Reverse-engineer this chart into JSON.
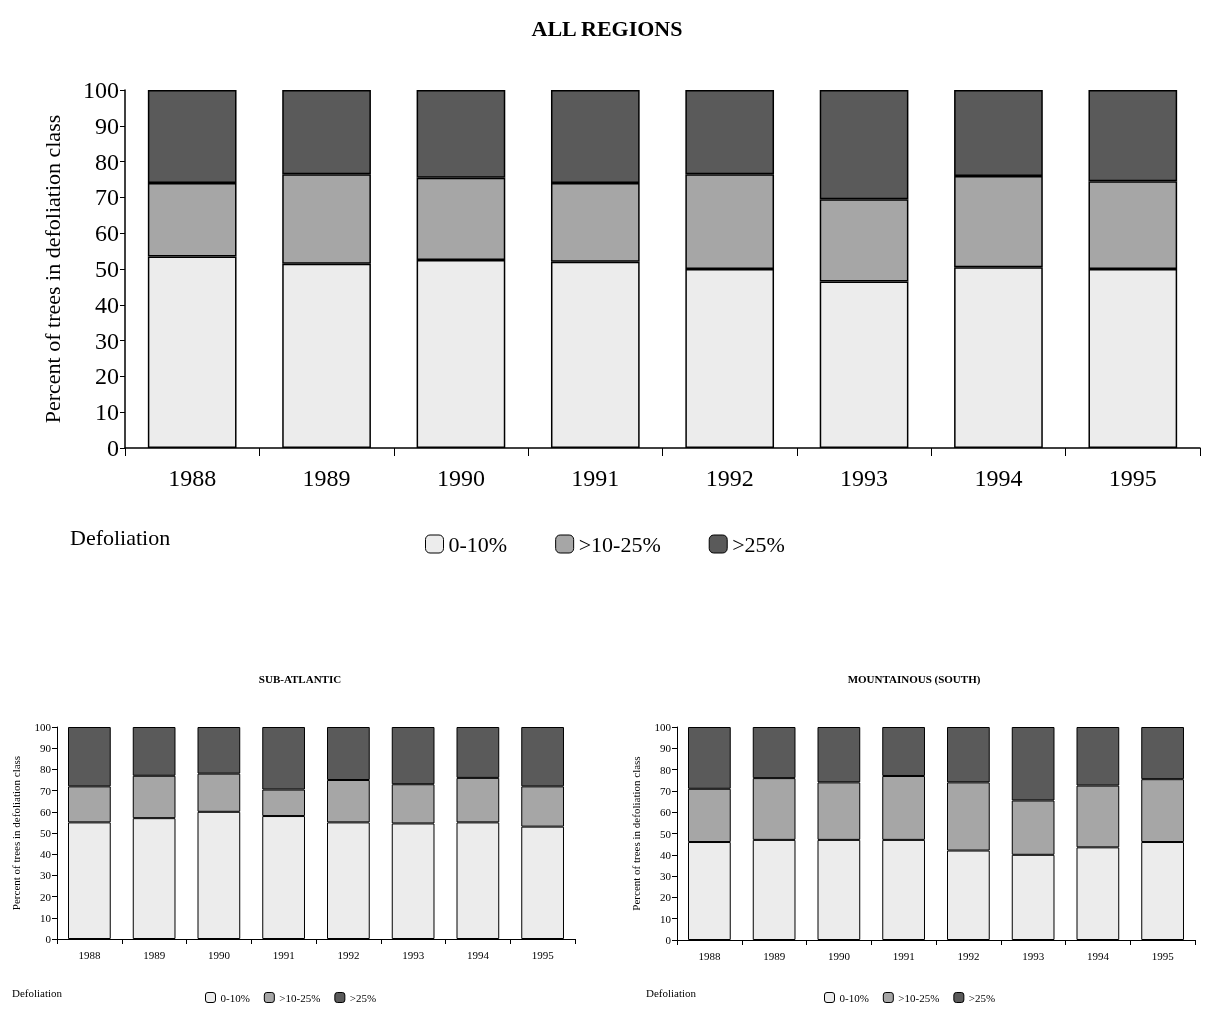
{
  "chart_data": [
    {
      "type": "bar",
      "title": "ALL REGIONS",
      "ylabel": "Percent of trees in defoliation class",
      "legend_title": "Defoliation",
      "categories": [
        "1988",
        "1989",
        "1990",
        "1991",
        "1992",
        "1993",
        "1994",
        "1995"
      ],
      "stacked": true,
      "ylim": [
        0,
        100
      ],
      "yticks": [
        0,
        10,
        20,
        30,
        40,
        50,
        60,
        70,
        80,
        90,
        100
      ],
      "grid": false,
      "legend": "bottom",
      "series": [
        {
          "name": "0-10%",
          "color": "#ececec",
          "values": [
            53.5,
            51.5,
            52.5,
            52,
            50,
            46.5,
            50.5,
            50
          ]
        },
        {
          "name": ">10-25%",
          "color": "#a6a6a6",
          "values": [
            20.5,
            25,
            23,
            22,
            26.5,
            23,
            25.5,
            24.5
          ]
        },
        {
          "name": ">25%",
          "color": "#5a5a5a",
          "values": [
            26,
            23.5,
            24.5,
            26,
            23.5,
            30.5,
            24,
            25.5
          ]
        }
      ]
    },
    {
      "type": "bar",
      "title": "SUB-ATLANTIC",
      "ylabel": "Percent of trees in defoliation class",
      "legend_title": "Defoliation",
      "categories": [
        "1988",
        "1989",
        "1990",
        "1991",
        "1992",
        "1993",
        "1994",
        "1995"
      ],
      "stacked": true,
      "ylim": [
        0,
        100
      ],
      "yticks": [
        0,
        10,
        20,
        30,
        40,
        50,
        60,
        70,
        80,
        90,
        100
      ],
      "grid": false,
      "legend": "bottom",
      "series": [
        {
          "name": "0-10%",
          "color": "#ececec",
          "values": [
            55,
            57,
            60,
            58,
            55,
            54.5,
            55,
            53
          ]
        },
        {
          "name": ">10-25%",
          "color": "#a6a6a6",
          "values": [
            17,
            20,
            18,
            12.5,
            20,
            18.5,
            21,
            19
          ]
        },
        {
          "name": ">25%",
          "color": "#5a5a5a",
          "values": [
            28,
            23,
            22,
            29.5,
            25,
            27,
            24,
            28
          ]
        }
      ]
    },
    {
      "type": "bar",
      "title": "MOUNTAINOUS (SOUTH)",
      "ylabel": "Percent of trees in defoliation class",
      "legend_title": "Defoliation",
      "categories": [
        "1988",
        "1989",
        "1990",
        "1991",
        "1992",
        "1993",
        "1994",
        "1995"
      ],
      "stacked": true,
      "ylim": [
        0,
        100
      ],
      "yticks": [
        0,
        10,
        20,
        30,
        40,
        50,
        60,
        70,
        80,
        90,
        100
      ],
      "grid": false,
      "legend": "bottom",
      "series": [
        {
          "name": "0-10%",
          "color": "#ececec",
          "values": [
            46,
            47,
            47,
            47,
            42,
            40,
            43.5,
            46
          ]
        },
        {
          "name": ">10-25%",
          "color": "#a6a6a6",
          "values": [
            25,
            29,
            27,
            30,
            32,
            25.5,
            29,
            29.5
          ]
        },
        {
          "name": ">25%",
          "color": "#5a5a5a",
          "values": [
            29,
            24,
            26,
            23,
            26,
            34.5,
            27.5,
            24.5
          ]
        }
      ]
    }
  ]
}
